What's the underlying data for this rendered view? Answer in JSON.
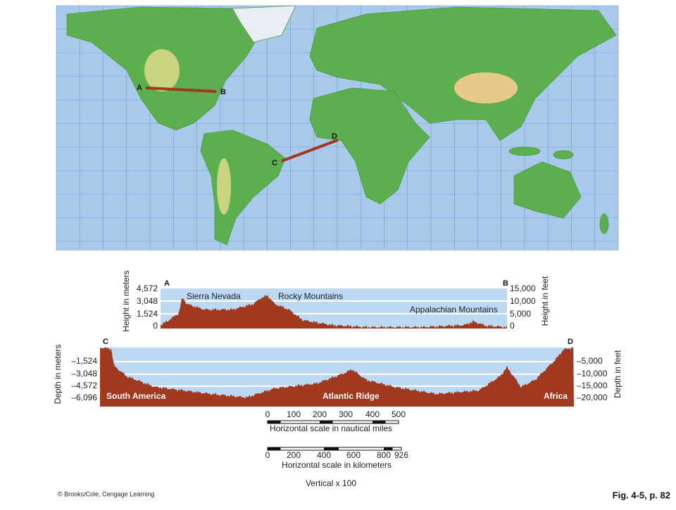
{
  "points": [
    "A",
    "B",
    "C",
    "D"
  ],
  "profile_ab": {
    "left_axis_title": "Height in meters",
    "right_axis_title": "Height in feet",
    "left_ticks": [
      "4,572",
      "3,048",
      "1,524",
      "0"
    ],
    "right_ticks": [
      "15,000",
      "10,000",
      "5,000",
      "0"
    ],
    "features": [
      "Sierra Nevada",
      "Rocky Mountains",
      "Appalachian Mountains"
    ]
  },
  "profile_cd": {
    "left_axis_title": "Depth in meters",
    "right_axis_title": "Depth in feet",
    "left_ticks": [
      "–1,524",
      "–3,048",
      "–4,572",
      "–6,096"
    ],
    "right_ticks": [
      "–5,000",
      "–10,000",
      "–15,000",
      "–20,000"
    ],
    "features": [
      "South America",
      "Atlantic Ridge",
      "Africa"
    ]
  },
  "scales": {
    "nautical": {
      "ticks": [
        "0",
        "100",
        "200",
        "300",
        "400",
        "500"
      ],
      "caption": "Horizontal scale in nautical miles"
    },
    "kilometers": {
      "ticks": [
        "0",
        "200",
        "400",
        "600",
        "800",
        "926"
      ],
      "caption": "Horizontal scale in kilometers"
    },
    "vertical": "Vertical x 100"
  },
  "credit": "© Brooks/Cole, Cengage Learning",
  "figure_label": "Fig. 4-5, p. 82"
}
